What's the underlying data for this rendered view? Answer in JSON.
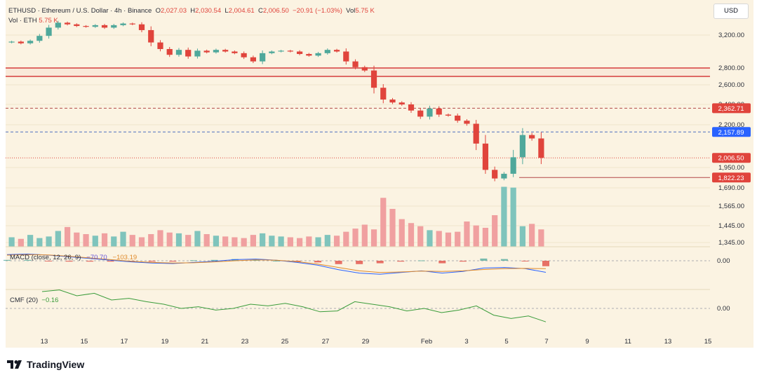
{
  "header": {
    "symbol": "ETHUSD · Ethereum / U.S. Dollar · 4h · Binance",
    "o_label": "O",
    "o_value": "2,027.03",
    "h_label": "H",
    "h_value": "2,030.54",
    "l_label": "L",
    "l_value": "2,004.61",
    "c_label": "C",
    "c_value": "2,006.50",
    "change": "−20.91 (−1.03%)",
    "vol_label": "Vol",
    "vol_value": "5.75 K",
    "vol_eth_label": "Vol · ETH",
    "vol_eth_value": "5.75 K"
  },
  "currency_button": "USD",
  "macd": {
    "label": "MACD (close, 12, 26, 9)",
    "signal_value": "−70.70",
    "macd_value": "−103.19"
  },
  "cmf": {
    "label": "CMF (20)",
    "value": "−0.16"
  },
  "price_labels": [
    {
      "text": "2,362.71",
      "price": 2362.71,
      "color": "#e0443c"
    },
    {
      "text": "2,157.89",
      "price": 2157.89,
      "color": "#2962ff"
    },
    {
      "text": "2,006.50",
      "price": 2006.5,
      "color": "#e0443c"
    },
    {
      "text": "1,822.23",
      "price": 1822.23,
      "color": "#e0443c"
    }
  ],
  "zero_labels": {
    "macd": "0.00",
    "cmf": "0.00"
  },
  "branding": "TradingView",
  "colors": {
    "up": "#4fa89b",
    "down": "#e0443c",
    "volume_up": "#7fc4bc",
    "volume_down": "#f0a0a0",
    "resistance": "#d63c3c",
    "current": "#e0443c",
    "macd_line": "#2962ff",
    "signal_line": "#e08a2a",
    "cmf_line": "#3a9c3a",
    "background": "#fbf3e2"
  },
  "chart_data": {
    "type": "candlestick",
    "symbol": "ETHUSD",
    "timeframe": "4h",
    "x_ticks": [
      "13",
      "15",
      "17",
      "19",
      "21",
      "23",
      "25",
      "27",
      "29",
      "Feb",
      "3",
      "5",
      "7",
      "9",
      "11",
      "13",
      "15"
    ],
    "y_ticks": [
      "3,200.00",
      "2,800.00",
      "2,600.00",
      "2,400.00",
      "2,200.00",
      "1,950.00",
      "1,690.00",
      "1,565.00",
      "1,445.00",
      "1,345.00"
    ],
    "y_tick_values": [
      3200,
      2800,
      2600,
      2400,
      2200,
      1950,
      1690,
      1565,
      1445,
      1345
    ],
    "resistance_zone": [
      2700,
      2800
    ],
    "horizontal_levels": [
      2362.71,
      2157.89,
      2006.5,
      1822.23
    ],
    "price_path": [
      3110,
      3120,
      3100,
      3130,
      3190,
      3290,
      3350,
      3330,
      3310,
      3300,
      3320,
      3290,
      3320,
      3340,
      3330,
      3260,
      3110,
      3030,
      2960,
      3020,
      2940,
      3010,
      2990,
      3020,
      3000,
      2980,
      2930,
      2880,
      2980,
      3000,
      3010,
      3000,
      2970,
      2950,
      2980,
      3020,
      3000,
      2880,
      2810,
      2770,
      2570,
      2450,
      2420,
      2400,
      2340,
      2280,
      2360,
      2300,
      2290,
      2240,
      2210,
      2090,
      1920,
      1810,
      1870,
      2010,
      2140,
      2120,
      2006.5
    ],
    "volume_k": [
      1.2,
      1.0,
      1.5,
      1.1,
      1.3,
      2.0,
      2.5,
      1.8,
      1.6,
      1.4,
      1.7,
      1.3,
      1.9,
      1.5,
      1.2,
      1.6,
      2.1,
      1.8,
      1.7,
      1.5,
      2.0,
      1.6,
      1.4,
      1.3,
      1.2,
      1.1,
      1.5,
      1.7,
      1.4,
      1.3,
      1.2,
      1.1,
      1.3,
      1.2,
      1.5,
      1.4,
      1.9,
      2.3,
      2.8,
      2.2,
      6.2,
      4.8,
      3.5,
      3.0,
      2.6,
      2.1,
      2.0,
      1.8,
      1.9,
      3.2,
      2.7,
      2.4,
      4.0,
      7.6,
      7.5,
      2.6,
      2.9,
      2.2,
      1.6
    ],
    "volume_max_k": 8.0,
    "macd_path": [
      55,
      60,
      50,
      35,
      20,
      5,
      -10,
      -20,
      -25,
      -15,
      -5,
      10,
      15,
      5,
      -15,
      -40,
      -80,
      -110,
      -120,
      -105,
      -90,
      -110,
      -95,
      -65,
      -60,
      -70,
      -103.19
    ],
    "signal_path": [
      50,
      55,
      52,
      40,
      25,
      10,
      -5,
      -15,
      -20,
      -18,
      -10,
      0,
      8,
      5,
      -8,
      -30,
      -60,
      -90,
      -105,
      -100,
      -92,
      -95,
      -90,
      -78,
      -70,
      -68,
      -70.7
    ],
    "cmf_path": [
      0.2,
      0.22,
      0.15,
      0.18,
      0.1,
      0.12,
      0.08,
      0.05,
      0.0,
      0.02,
      -0.02,
      0.0,
      0.05,
      0.03,
      0.06,
      0.02,
      -0.04,
      -0.03,
      0.08,
      0.05,
      0.02,
      -0.03,
      0.0,
      -0.05,
      -0.02,
      0.03,
      -0.08,
      -0.12,
      -0.09,
      -0.16
    ]
  }
}
